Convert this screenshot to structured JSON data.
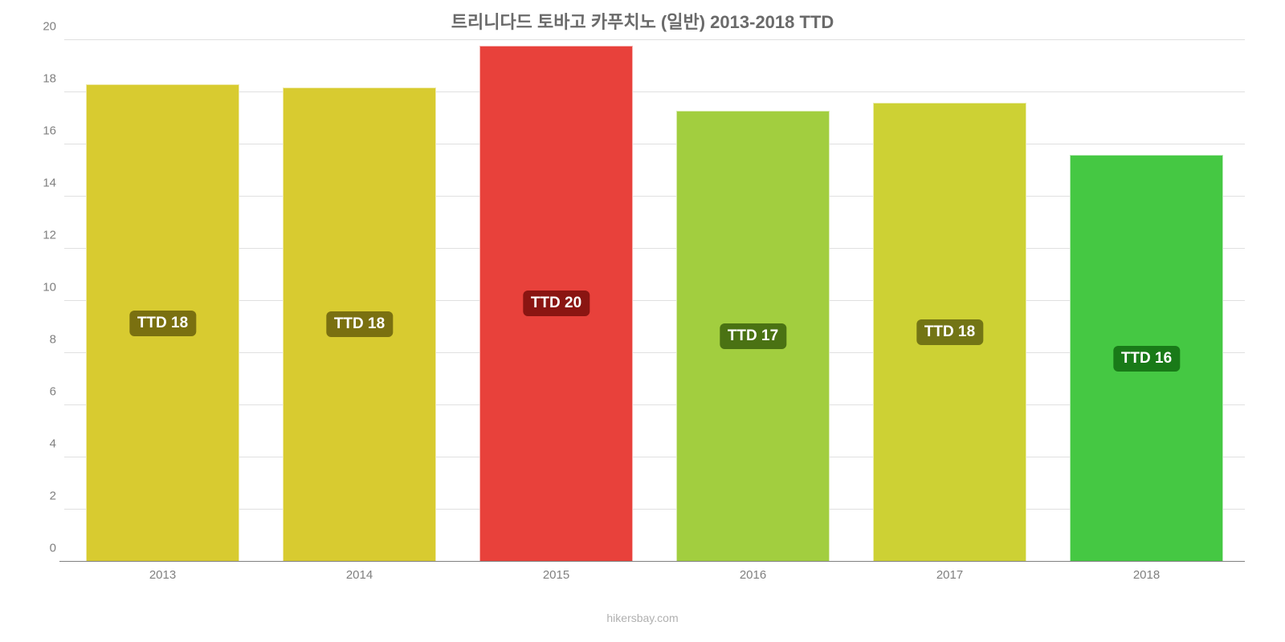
{
  "chart": {
    "type": "bar",
    "title": "트리니다드 토바고 카푸치노 (일반) 2013-2018 TTD",
    "title_color": "#6a6a6a",
    "title_fontsize": 22,
    "background_color": "#ffffff",
    "grid_color": "#e0e0e0",
    "axis_text_color": "#808080",
    "ylim": [
      0,
      20
    ],
    "ytick_step": 2,
    "yticks": [
      0,
      2,
      4,
      6,
      8,
      10,
      12,
      14,
      16,
      18,
      20
    ],
    "categories": [
      "2013",
      "2014",
      "2015",
      "2016",
      "2017",
      "2018"
    ],
    "values": [
      18.3,
      18.2,
      19.8,
      17.3,
      17.6,
      15.6
    ],
    "bar_colors": [
      "#d8cb30",
      "#d8cb30",
      "#e8413b",
      "#a2ce3f",
      "#cdd134",
      "#45c843"
    ],
    "bar_label_bg": [
      "#7a7010",
      "#7a7010",
      "#8a1512",
      "#4a7213",
      "#737515",
      "#197a18"
    ],
    "bar_labels": [
      "TTD 18",
      "TTD 18",
      "TTD 20",
      "TTD 17",
      "TTD 18",
      "TTD 16"
    ],
    "bar_label_color": "#ffffff",
    "bar_width": 0.78,
    "source": "hikersbay.com",
    "source_color": "#b0b0b0"
  }
}
